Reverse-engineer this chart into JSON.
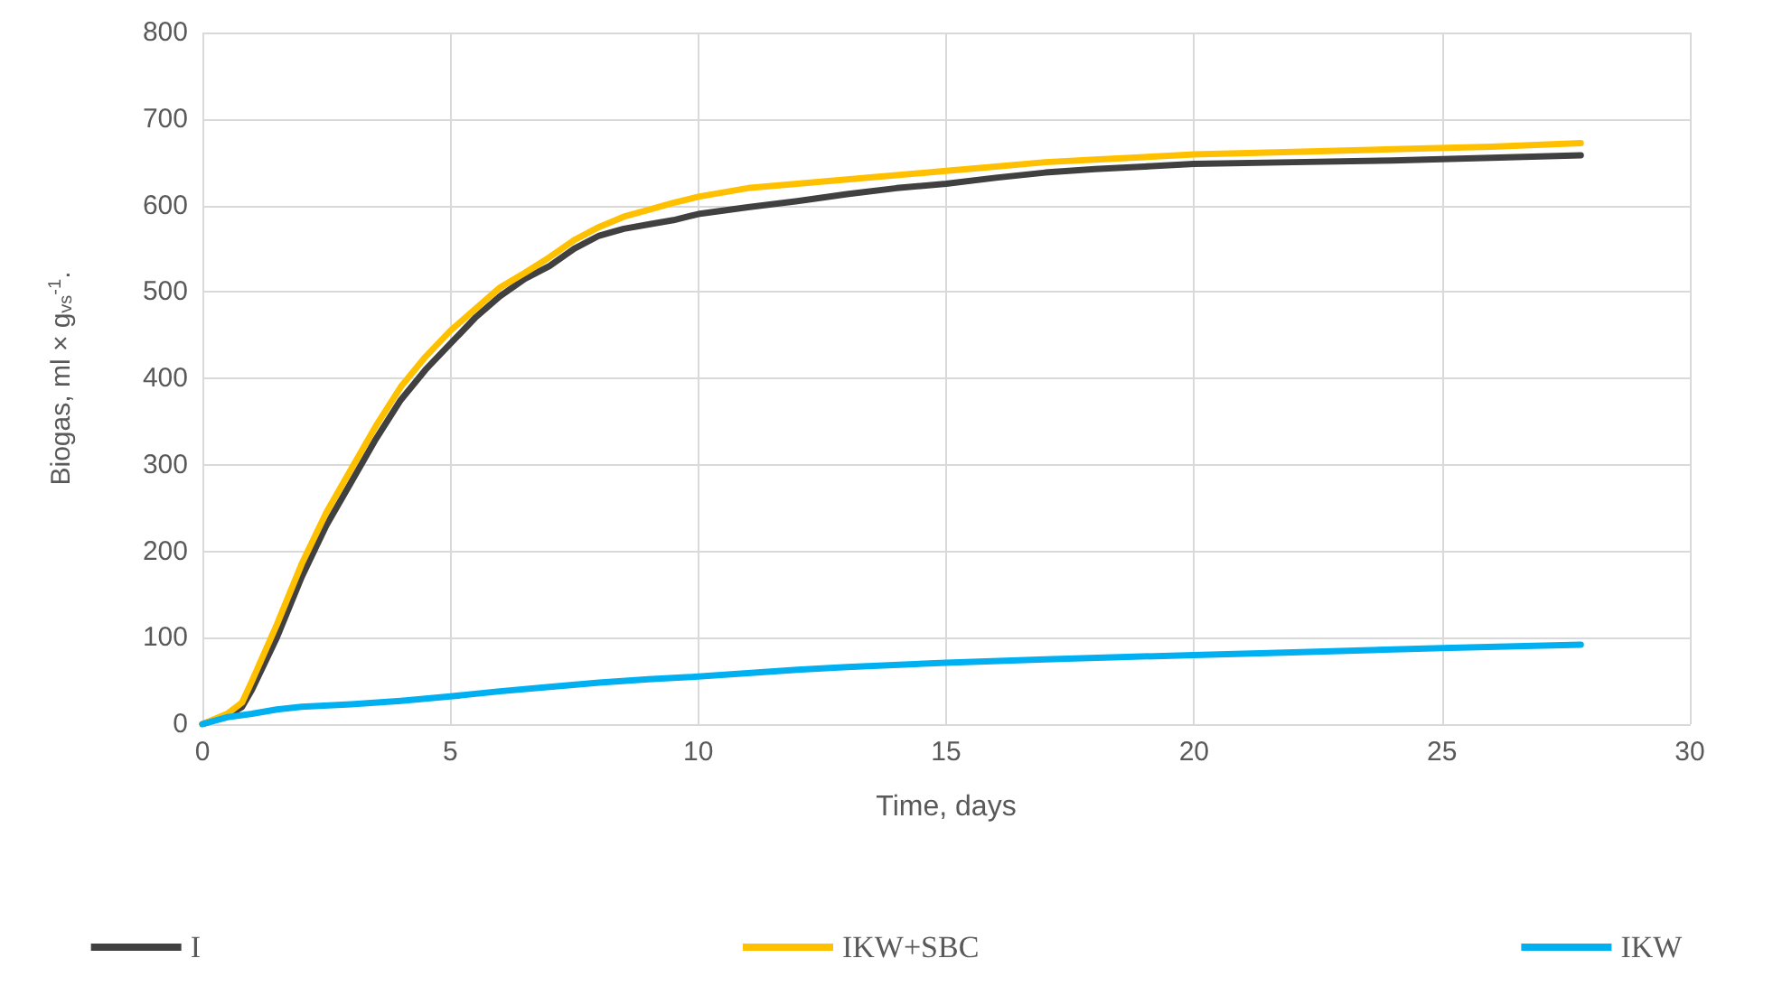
{
  "chart_data": {
    "type": "line",
    "xlabel": "Time, days",
    "ylabel": "Biogas, ml × g$_{vs}$$^{-1}$.",
    "xlim": [
      0,
      30
    ],
    "xticks": [
      0,
      5,
      10,
      15,
      20,
      25,
      30
    ],
    "ylim": [
      0,
      800
    ],
    "yticks": [
      0,
      100,
      200,
      300,
      400,
      500,
      600,
      700,
      800
    ],
    "grid": true,
    "legend": "bottom",
    "marker": "none",
    "line_style": "solid",
    "series": [
      {
        "name": "I",
        "color": "#404040",
        "x": [
          0,
          0.5,
          0.8,
          1,
          1.5,
          2,
          2.5,
          3,
          3.5,
          4,
          4.5,
          5,
          5.5,
          6,
          6.5,
          7,
          7.5,
          8,
          8.5,
          9,
          9.5,
          10,
          11,
          12,
          13,
          14,
          15,
          16,
          17,
          18,
          19,
          20,
          22,
          24,
          26,
          27.8
        ],
        "values": [
          0,
          10,
          20,
          40,
          100,
          170,
          230,
          280,
          330,
          375,
          410,
          440,
          470,
          495,
          515,
          530,
          550,
          565,
          573,
          578,
          583,
          590,
          598,
          605,
          613,
          620,
          625,
          632,
          638,
          642,
          645,
          648,
          650,
          652,
          655,
          658
        ]
      },
      {
        "name": "IKW+SBC",
        "color": "#ffc000",
        "x": [
          0,
          0.5,
          0.8,
          1,
          1.5,
          2,
          2.5,
          3,
          3.5,
          4,
          4.5,
          5,
          5.5,
          6,
          6.5,
          7,
          7.5,
          8,
          8.5,
          9,
          9.5,
          10,
          11,
          12,
          13,
          14,
          15,
          16,
          17,
          18,
          19,
          20,
          22,
          24,
          26,
          27.8
        ],
        "values": [
          0,
          12,
          25,
          50,
          115,
          185,
          245,
          295,
          345,
          390,
          425,
          455,
          480,
          505,
          522,
          540,
          560,
          575,
          587,
          595,
          603,
          610,
          620,
          625,
          630,
          635,
          640,
          645,
          650,
          653,
          656,
          659,
          662,
          665,
          668,
          672
        ]
      },
      {
        "name": "IKW",
        "color": "#00b0f0",
        "x": [
          0,
          0.5,
          1,
          1.5,
          2,
          3,
          4,
          5,
          6,
          7,
          8,
          9,
          10,
          11,
          12,
          13,
          15,
          17,
          20,
          22,
          25,
          27.8
        ],
        "values": [
          0,
          8,
          12,
          17,
          20,
          23,
          27,
          32,
          38,
          43,
          48,
          52,
          55,
          59,
          63,
          66,
          71,
          75,
          80,
          83,
          88,
          92
        ]
      }
    ]
  }
}
